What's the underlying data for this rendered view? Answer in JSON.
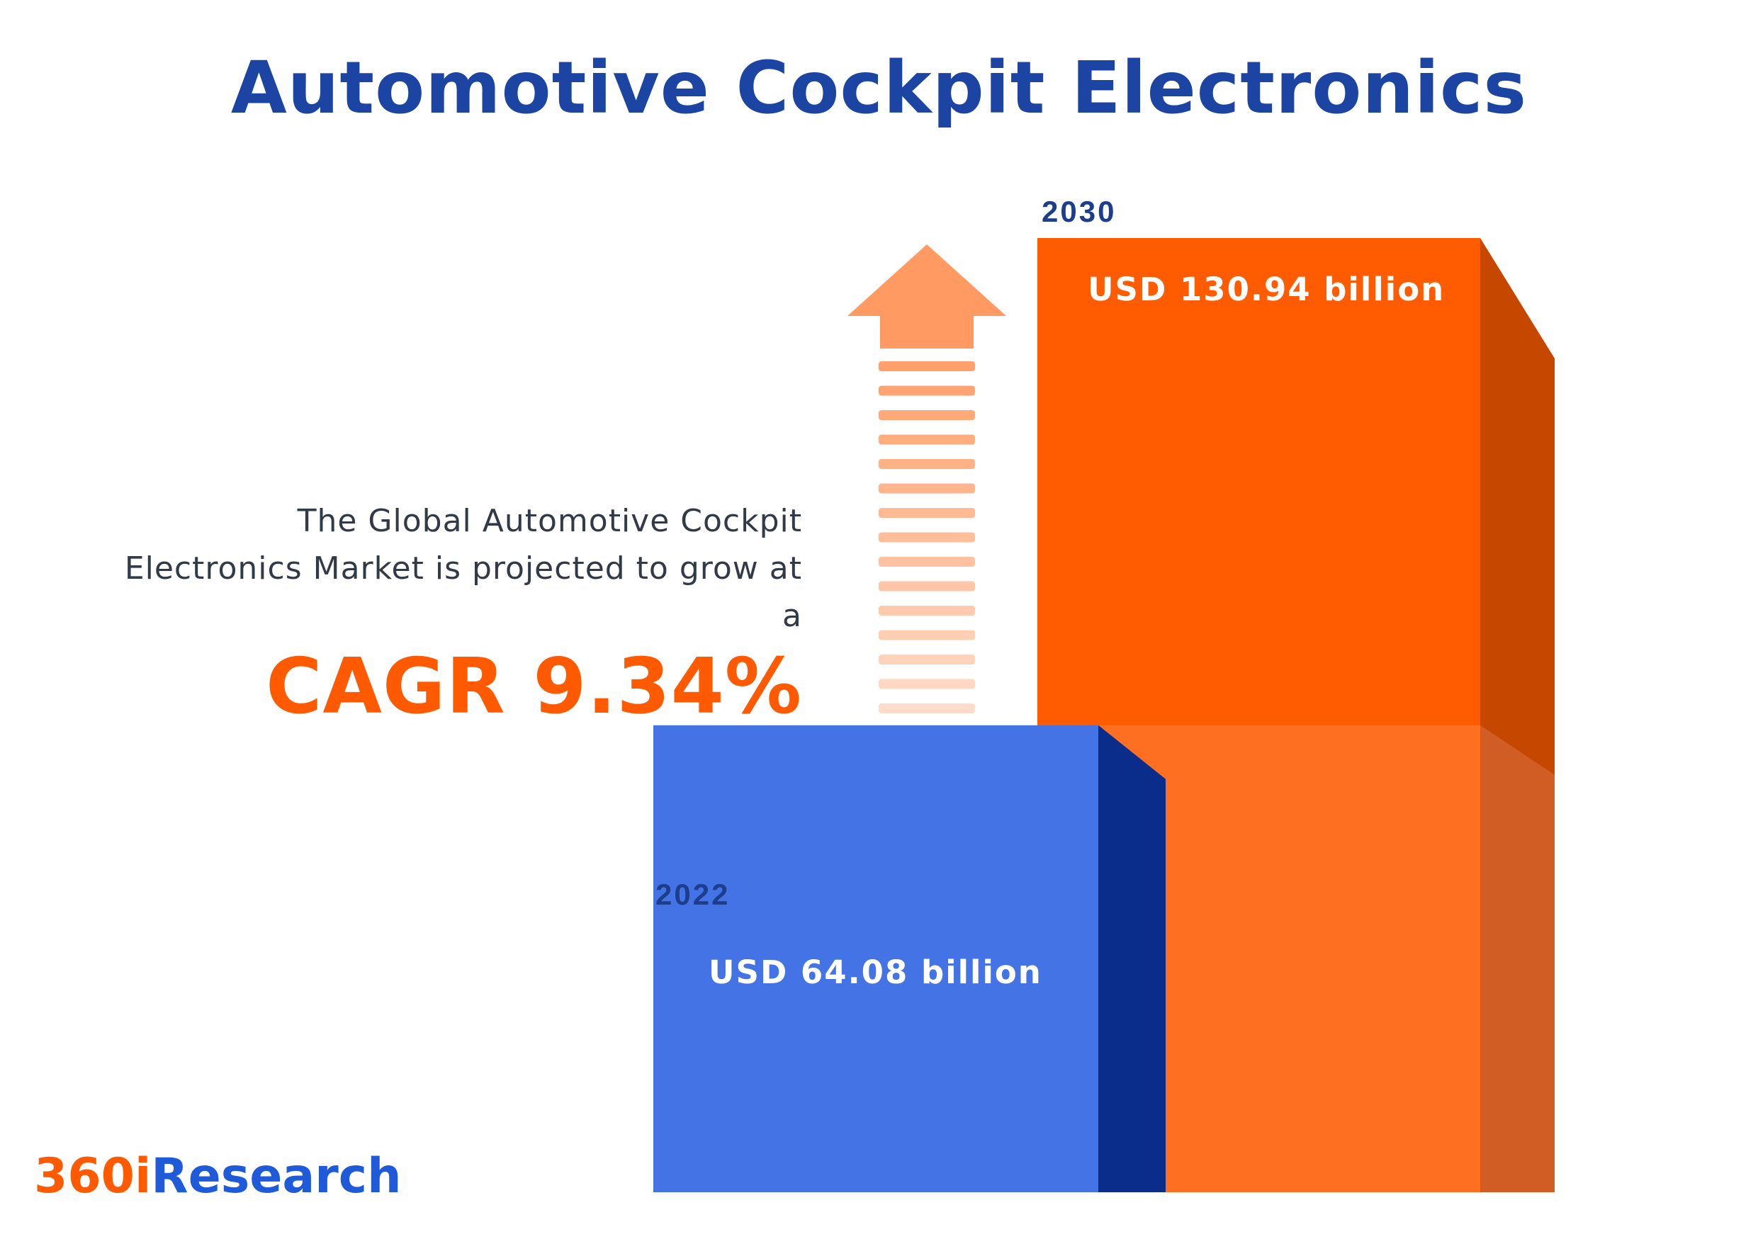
{
  "title": "Automotive Cockpit Electronics",
  "description": {
    "line1": "The Global Automotive Cockpit",
    "line2": "Electronics Market is projected to grow at",
    "line3": "a"
  },
  "cagr_label": "CAGR 9.34%",
  "logo": {
    "part1": "360i",
    "part2": "Research"
  },
  "colors": {
    "title": "#1c44a3",
    "accent_orange": "#ff5a00",
    "bar_2022_front": "#4373e5",
    "bar_2022_side": "#0a2c8a",
    "bar_2030_front": "#ff5b00",
    "bar_2030_side": "#c64800",
    "arrow": "#ff9a63"
  },
  "chart_data": {
    "type": "bar",
    "categories": [
      "2022",
      "2030"
    ],
    "values": [
      64.08,
      130.94
    ],
    "value_labels": [
      "USD 64.08 billion",
      "USD 130.94 billion"
    ],
    "unit": "USD billion",
    "cagr_percent": 9.34,
    "ylim": [
      0,
      130.94
    ]
  }
}
